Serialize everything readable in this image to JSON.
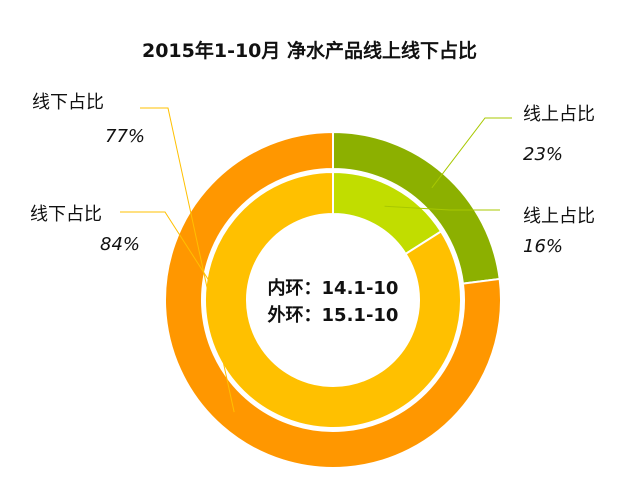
{
  "chart_data": {
    "type": "pie",
    "title": "2015年1-10月 净水产品线上线下占比",
    "center_labels": [
      "内环：14.1-10",
      "外环：15.1-10"
    ],
    "rings": [
      {
        "ring": "inner",
        "slices": [
          {
            "label": "线上占比",
            "value": 16,
            "display": "16%",
            "color": "#c1dd00"
          },
          {
            "label": "线下占比",
            "value": 84,
            "display": "84%",
            "color": "#ffc000"
          }
        ]
      },
      {
        "ring": "outer",
        "slices": [
          {
            "label": "线上占比",
            "value": 23,
            "display": "23%",
            "color": "#8cb000"
          },
          {
            "label": "线下占比",
            "value": 77,
            "display": "77%",
            "color": "#ff9700"
          }
        ]
      }
    ]
  }
}
